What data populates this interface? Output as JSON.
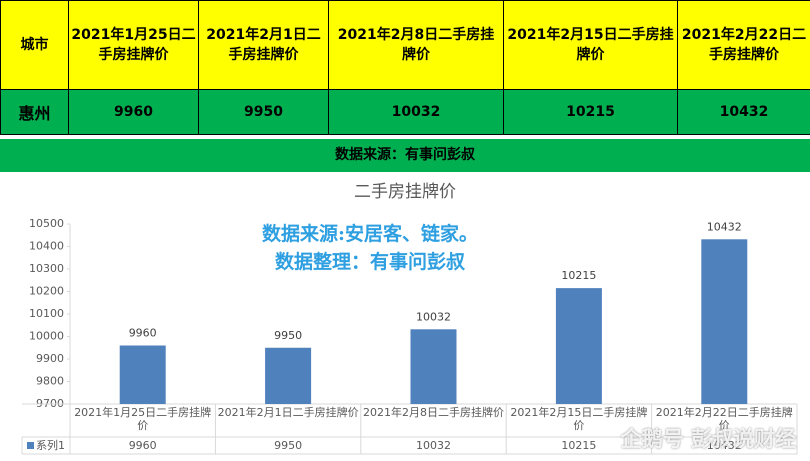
{
  "table": {
    "header": [
      "城市",
      "2021年1月25日二手房挂牌价",
      "2021年2月1日二手房挂牌价",
      "2021年2月8日二手房挂牌价",
      "2021年2月15日二手房挂牌价",
      "2021年2月22日二手房挂牌价"
    ],
    "rows": [
      [
        "惠州",
        9960,
        9950,
        10032,
        10215,
        10432
      ]
    ]
  },
  "source_banner": "数据来源：有事问彭叔",
  "chart_data": {
    "type": "bar",
    "title": "二手房挂牌价",
    "annotations": [
      "数据来源:安居客、链家。",
      "数据整理：有事问彭叔"
    ],
    "categories": [
      "2021年1月25日二手房挂牌价",
      "2021年2月1日二手房挂牌价",
      "2021年2月8日二手房挂牌价",
      "2021年2月15日二手房挂牌价",
      "2021年2月22日二手房挂牌价"
    ],
    "series": [
      {
        "name": "系列1",
        "color": "#4f81bd",
        "values": [
          9960,
          9950,
          10032,
          10215,
          10432
        ]
      }
    ],
    "ylim": [
      9700,
      10500
    ],
    "yticks": [
      9700,
      9800,
      9900,
      10000,
      10100,
      10200,
      10300,
      10400,
      10500
    ],
    "data_labels": true,
    "data_table": true
  },
  "watermark": "企鹅号 彭叔说财经"
}
